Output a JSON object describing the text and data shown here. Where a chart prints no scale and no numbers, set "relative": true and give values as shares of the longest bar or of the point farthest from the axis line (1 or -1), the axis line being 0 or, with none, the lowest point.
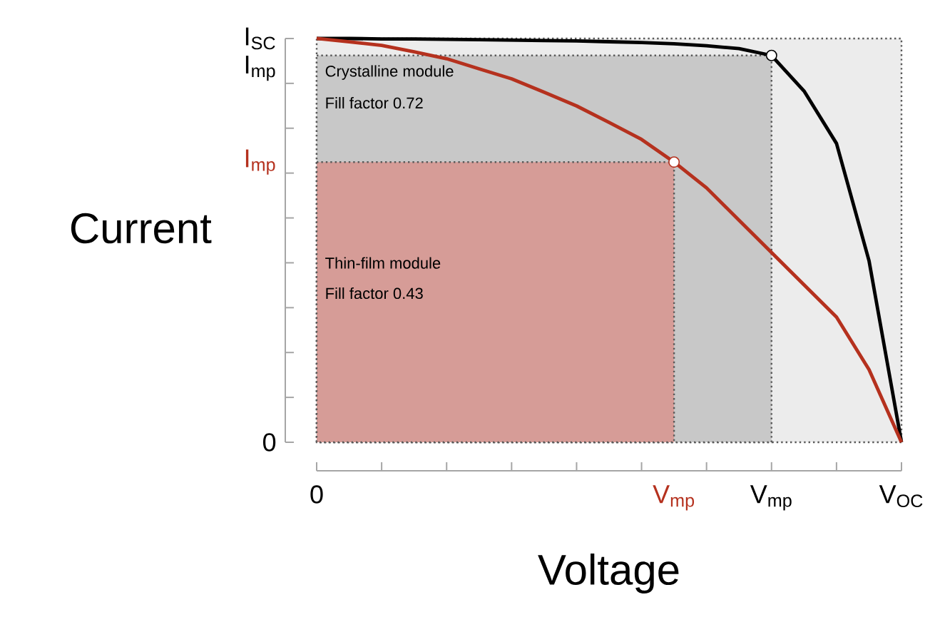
{
  "chart_data": {
    "type": "line",
    "relative": true,
    "xlabel": "Voltage",
    "ylabel": "Current",
    "categories": [
      "0",
      null,
      null,
      null,
      null,
      null,
      null,
      null,
      null,
      null,
      null,
      "V$_{mp}$",
      null,
      null,
      "V$_{mp}$",
      null,
      null,
      null,
      "V$_{OC}$"
    ],
    "series": [
      {
        "type": "area",
        "color": "#c8c8c8",
        "line_style": "dotted",
        "values": [
          0.958,
          0.958,
          0.958,
          0.958,
          0.958,
          0.958,
          0.958,
          0.958,
          0.958,
          0.958,
          0.958,
          0.958,
          0.958,
          0.958,
          0.958,
          null,
          null,
          null,
          null
        ]
      },
      {
        "type": "area",
        "color": "#d69c97",
        "line_style": "dotted",
        "values": [
          0.694,
          0.694,
          0.694,
          0.694,
          0.694,
          0.694,
          0.694,
          0.694,
          0.694,
          0.694,
          0.694,
          0.694,
          null,
          null,
          null,
          null,
          null,
          null,
          null
        ]
      },
      {
        "type": "line",
        "color": "#000000",
        "line_style": "solid",
        "values": [
          1,
          1,
          0.999,
          0.999,
          0.998,
          0.997,
          0.996,
          0.995,
          0.994,
          0.992,
          0.99,
          0.987,
          0.982,
          0.975,
          0.958,
          0.87,
          0.74,
          0.45,
          0
        ]
      },
      {
        "type": "line",
        "color": "#b5311e",
        "line_style": "solid",
        "values": [
          1,
          0.992,
          0.983,
          0.967,
          0.95,
          0.925,
          0.9,
          0.867,
          0.833,
          0.792,
          0.75,
          0.694,
          0.63,
          0.55,
          0.47,
          0.39,
          0.31,
          0.18,
          0
        ]
      },
      {
        "type": "scatter",
        "color": "#000000",
        "values": [
          null,
          null,
          null,
          null,
          null,
          null,
          null,
          null,
          null,
          null,
          null,
          null,
          null,
          null,
          0.958,
          null,
          null,
          null,
          null
        ]
      },
      {
        "type": "scatter",
        "color": "#b5311e",
        "values": [
          null,
          null,
          null,
          null,
          null,
          null,
          null,
          null,
          null,
          null,
          null,
          0.694,
          null,
          null,
          null,
          null,
          null,
          null,
          null
        ]
      }
    ],
    "annotations": [
      "I$_{SC}$",
      "I$_{mp}$",
      "I$_{mp}$",
      "0",
      "Crystalline module",
      "Fill factor 0.72",
      "Thin-film module",
      "Fill factor 0.43"
    ]
  }
}
